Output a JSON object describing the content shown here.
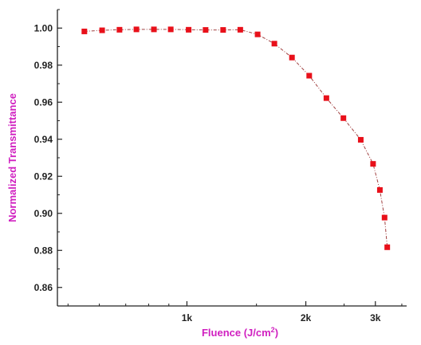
{
  "chart_data": {
    "type": "line",
    "title": "",
    "xlabel": "Fluence (J/cm",
    "xlabel_sup": "2",
    "xlabel_suffix": ")",
    "ylabel": "Normalized Transmittance",
    "x_scale": "log",
    "xlim": [
      470,
      3600
    ],
    "ylim": [
      0.85,
      1.01
    ],
    "x_ticks": [
      {
        "value": 1000,
        "label": "1k"
      },
      {
        "value": 2000,
        "label": "2k"
      },
      {
        "value": 3000,
        "label": "3k"
      }
    ],
    "y_ticks": [
      {
        "value": 0.86,
        "label": "0.86"
      },
      {
        "value": 0.88,
        "label": "0.88"
      },
      {
        "value": 0.9,
        "label": "0.90"
      },
      {
        "value": 0.92,
        "label": "0.92"
      },
      {
        "value": 0.94,
        "label": "0.94"
      },
      {
        "value": 0.96,
        "label": "0.96"
      },
      {
        "value": 0.98,
        "label": "0.98"
      },
      {
        "value": 1.0,
        "label": "1.00"
      }
    ],
    "grid": false,
    "series": [
      {
        "marker": "square",
        "line_style": "dash-dot",
        "color": "#e8101a",
        "line_color": "#a04040",
        "x": [
          550,
          610,
          675,
          745,
          825,
          910,
          1010,
          1115,
          1235,
          1365,
          1510,
          1665,
          1845,
          2040,
          2255,
          2490,
          2755,
          2960,
          3080,
          3165,
          3215
        ],
        "y": [
          0.9982,
          0.9988,
          0.9991,
          0.9993,
          0.9993,
          0.9993,
          0.9991,
          0.999,
          0.999,
          0.9991,
          0.9966,
          0.9916,
          0.9841,
          0.9743,
          0.9622,
          0.9514,
          0.9397,
          0.9267,
          0.9126,
          0.8977,
          0.8817
        ]
      }
    ]
  },
  "colors": {
    "axis_title": "#d020c0",
    "axis_line": "#222222",
    "marker": "#e8101a"
  }
}
